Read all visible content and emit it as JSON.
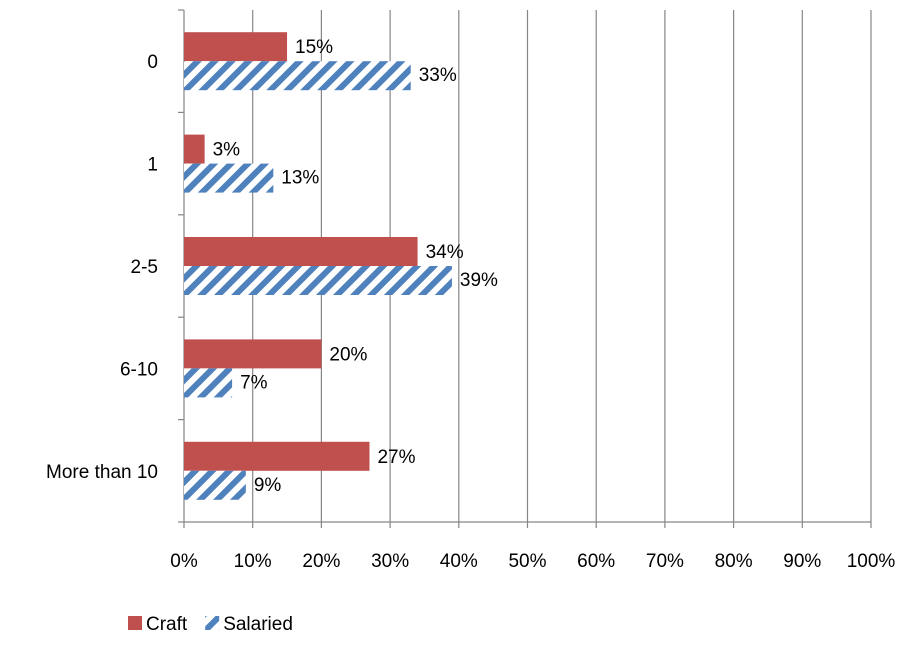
{
  "chart_data": {
    "type": "bar",
    "orientation": "horizontal",
    "title": "",
    "xlabel": "",
    "ylabel": "",
    "categories": [
      "0",
      "1",
      "2-5",
      "6-10",
      "More than 10"
    ],
    "x_ticks": [
      "0%",
      "10%",
      "20%",
      "30%",
      "40%",
      "50%",
      "60%",
      "70%",
      "80%",
      "90%",
      "100%"
    ],
    "xlim": [
      0,
      100
    ],
    "grid": "vertical",
    "legend_position": "bottom-left",
    "series": [
      {
        "name": "Craft",
        "values": [
          15,
          3,
          34,
          20,
          27
        ],
        "labels": [
          "15%",
          "3%",
          "34%",
          "20%",
          "27%"
        ],
        "color": "#c0504d",
        "pattern": "solid"
      },
      {
        "name": "Salaried",
        "values": [
          33,
          13,
          39,
          7,
          9
        ],
        "labels": [
          "33%",
          "13%",
          "39%",
          "7%",
          "9%"
        ],
        "color": "#4f81bd",
        "pattern": "diagonal-hatch"
      }
    ]
  }
}
